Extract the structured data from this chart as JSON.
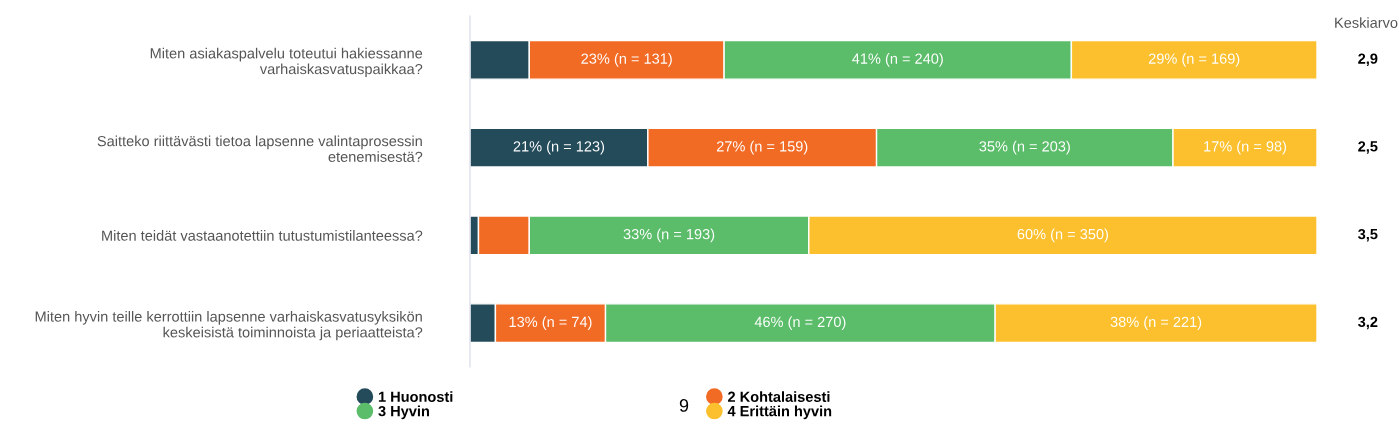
{
  "chart_data": {
    "type": "bar",
    "orientation": "horizontal",
    "stacked": true,
    "categories": [
      "Miten asiakaspalvelu toteutui hakiessanne\nvarhaiskasvatuspaikkaa?",
      "Saitteko riittävästi tietoa lapsenne valintaprosessin\netenemisestä?",
      "Miten teidät vastaanotettiin tutustumistilanteessa?",
      "Miten hyvin teille kerrottiin lapsenne varhaiskasvatusyksikön\nkeskeisistä toiminnoista ja periaatteista?"
    ],
    "series": [
      {
        "name": "1 Huonosti",
        "color": "#244b5a",
        "values": [
          7,
          21,
          1,
          3
        ],
        "value_labels": [
          null,
          "21% (n = 123)",
          null,
          null
        ]
      },
      {
        "name": "2 Kohtalaisesti",
        "color": "#f26b25",
        "values": [
          23,
          27,
          6,
          13
        ],
        "value_labels": [
          "23% (n = 131)",
          "27% (n = 159)",
          null,
          "13% (n = 74)"
        ]
      },
      {
        "name": "3 Hyvin",
        "color": "#5bbd6a",
        "values": [
          41,
          35,
          33,
          46
        ],
        "value_labels": [
          "41% (n = 240)",
          "35% (n = 203)",
          "33% (n = 193)",
          "46% (n = 270)"
        ]
      },
      {
        "name": "4 Erittäin hyvin",
        "color": "#fcc02e",
        "values": [
          29,
          17,
          60,
          38
        ],
        "value_labels": [
          "29% (n = 169)",
          "17% (n = 98)",
          "60% (n = 350)",
          "38% (n = 221)"
        ]
      }
    ],
    "xlim": [
      0,
      100
    ],
    "tick_labels": "y",
    "legend": "bottom",
    "annotations": [
      "Keskiarvo",
      "2,9",
      "2,5",
      "3,5",
      "3,2",
      "9"
    ]
  }
}
